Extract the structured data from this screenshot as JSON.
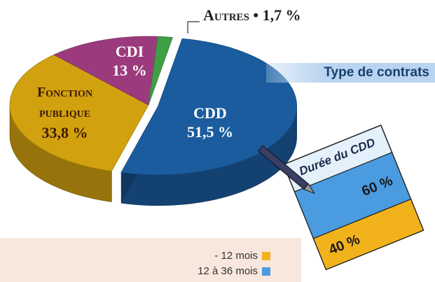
{
  "chart_data": [
    {
      "type": "pie3d",
      "title": "Type de contrats",
      "categories": [
        "CDD",
        "Fonction publique",
        "CDI",
        "Autres"
      ],
      "values": [
        51.5,
        33.8,
        13,
        1.7
      ],
      "value_labels": [
        "51,5 %",
        "33,8 %",
        "13 %",
        "1,7 %"
      ],
      "label_separator": "•",
      "colors": [
        "#1b5c9e",
        "#d1a10f",
        "#9b3b7d",
        "#3e9f45"
      ],
      "exploded": [
        true,
        false,
        false,
        false
      ]
    },
    {
      "type": "stacked-sheet",
      "title": "Durée du CDD",
      "series": [
        {
          "name": "- 12 mois",
          "color": "#f2b21b",
          "values": [
            40
          ],
          "value_labels": [
            "40 %"
          ]
        },
        {
          "name": "12 à 36 mois",
          "color": "#4a9be0",
          "values": [
            60
          ],
          "value_labels": [
            "60 %"
          ]
        }
      ]
    }
  ]
}
